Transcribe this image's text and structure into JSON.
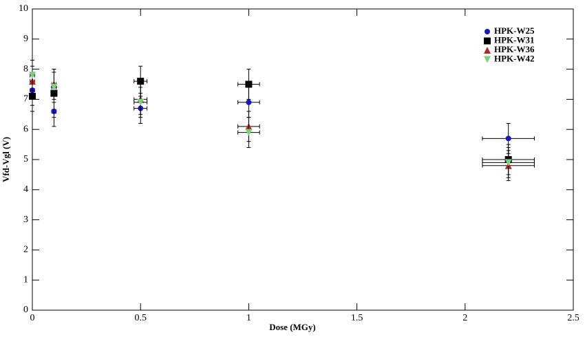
{
  "chart_data": {
    "type": "scatter",
    "x_label": "Dose (MGy)",
    "y_label": "Vfd-Vgl (V)",
    "x": [
      0,
      0.1,
      0.5,
      1,
      2.2
    ],
    "xerr": [
      0.01,
      0.01,
      0.03,
      0.05,
      0.12
    ],
    "series": [
      {
        "name": "HPK-W25",
        "color": "#1414c8",
        "marker": "circle",
        "values": [
          7.3,
          6.6,
          6.7,
          6.9,
          5.7
        ],
        "yerr": [
          0.5,
          0.5,
          0.5,
          0.5,
          0.5
        ]
      },
      {
        "name": "HPK-W31",
        "color": "#000000",
        "marker": "square",
        "values": [
          7.1,
          7.2,
          7.6,
          7.5,
          5.0
        ],
        "yerr": [
          0.5,
          0.8,
          0.5,
          0.5,
          0.5
        ]
      },
      {
        "name": "HPK-W36",
        "color": "#b42828",
        "marker": "triangle-up",
        "values": [
          7.6,
          7.5,
          7.0,
          6.1,
          4.8
        ],
        "yerr": [
          0.5,
          0.5,
          0.5,
          0.5,
          0.5
        ]
      },
      {
        "name": "HPK-W42",
        "color": "#78d278",
        "marker": "triangle-down",
        "values": [
          7.8,
          7.4,
          6.9,
          5.9,
          4.9
        ],
        "yerr": [
          0.5,
          0.5,
          0.5,
          0.5,
          0.5
        ]
      }
    ],
    "xlim": [
      0,
      2.5
    ],
    "xticks": [
      0,
      0.5,
      1,
      1.5,
      2,
      2.5
    ],
    "ylim": [
      0,
      10
    ],
    "yticks": [
      0,
      1,
      2,
      3,
      4,
      5,
      6,
      7,
      8,
      9,
      10
    ],
    "legend": "top-right",
    "grid": false
  }
}
